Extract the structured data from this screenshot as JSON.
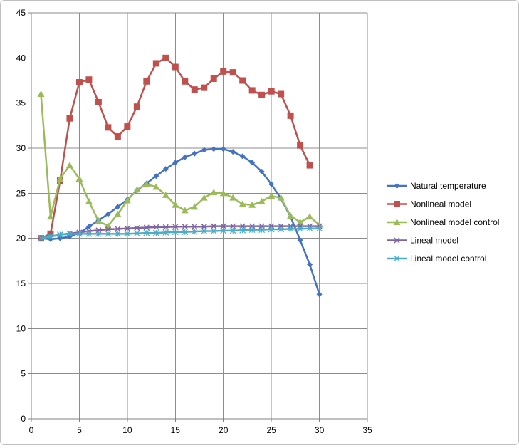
{
  "chart_data": {
    "type": "line",
    "title": "",
    "xlabel": "",
    "ylabel": "",
    "xlim": [
      0,
      35
    ],
    "ylim": [
      0,
      45
    ],
    "xticks": [
      0,
      5,
      10,
      15,
      20,
      25,
      30,
      35
    ],
    "yticks": [
      0,
      5,
      10,
      15,
      20,
      25,
      30,
      35,
      40,
      45
    ],
    "grid": true,
    "legend_position": "right",
    "series": [
      {
        "name": "Natural temperature",
        "color": "#4472C4",
        "marker": "diamond",
        "x": [
          1,
          2,
          3,
          4,
          5,
          6,
          7,
          8,
          9,
          10,
          11,
          12,
          13,
          14,
          15,
          16,
          17,
          18,
          19,
          20,
          21,
          22,
          23,
          24,
          25,
          26,
          27,
          28,
          29,
          30
        ],
        "y": [
          20,
          19.9,
          20,
          20.2,
          20.6,
          21.3,
          22,
          22.7,
          23.5,
          24.3,
          25.3,
          26.1,
          26.9,
          27.7,
          28.4,
          29,
          29.4,
          29.8,
          29.9,
          29.9,
          29.6,
          29.1,
          28.4,
          27.4,
          26,
          24.4,
          22.4,
          19.8,
          17.1,
          13.8
        ]
      },
      {
        "name": "Nonlineal model",
        "color": "#C0504D",
        "marker": "square",
        "x": [
          1,
          2,
          3,
          4,
          5,
          6,
          7,
          8,
          9,
          10,
          11,
          12,
          13,
          14,
          15,
          16,
          17,
          18,
          19,
          20,
          21,
          22,
          23,
          24,
          25,
          26,
          27,
          28,
          29
        ],
        "y": [
          20,
          20.5,
          26.4,
          33.3,
          37.3,
          37.6,
          35.1,
          32.3,
          31.3,
          32.4,
          34.6,
          37.4,
          39.4,
          40,
          39,
          37.4,
          36.5,
          36.7,
          37.7,
          38.5,
          38.4,
          37.5,
          36.4,
          35.9,
          36.3,
          36,
          33.6,
          30.3,
          28.1
        ]
      },
      {
        "name": "Nonlineal model control",
        "color": "#9BBB59",
        "marker": "triangle",
        "x": [
          1,
          2,
          3,
          4,
          5,
          6,
          7,
          8,
          9,
          10,
          11,
          12,
          13,
          14,
          15,
          16,
          17,
          18,
          19,
          20,
          21,
          22,
          23,
          24,
          25,
          26,
          27,
          28,
          29,
          30
        ],
        "y": [
          36,
          22.4,
          26.6,
          28.1,
          26.6,
          24.1,
          21.9,
          21.4,
          22.7,
          24.2,
          25.4,
          26,
          25.7,
          24.8,
          23.7,
          23.1,
          23.5,
          24.5,
          25.1,
          25,
          24.5,
          23.8,
          23.7,
          24.1,
          24.7,
          24.5,
          22.5,
          21.8,
          22.4,
          21.5
        ]
      },
      {
        "name": "Lineal model",
        "color": "#8064A2",
        "marker": "x",
        "x": [
          1,
          2,
          3,
          4,
          5,
          6,
          7,
          8,
          9,
          10,
          11,
          12,
          13,
          14,
          15,
          16,
          17,
          18,
          19,
          20,
          21,
          22,
          23,
          24,
          25,
          26,
          27,
          28,
          29,
          30
        ],
        "y": [
          20,
          20.2,
          20.4,
          20.55,
          20.65,
          20.8,
          20.9,
          21,
          21.05,
          21.1,
          21.15,
          21.2,
          21.25,
          21.25,
          21.3,
          21.3,
          21.3,
          21.3,
          21.35,
          21.35,
          21.35,
          21.35,
          21.35,
          21.35,
          21.35,
          21.35,
          21.35,
          21.35,
          21.35,
          21.35
        ]
      },
      {
        "name": "Lineal model control",
        "color": "#4BACC6",
        "marker": "star",
        "x": [
          1,
          2,
          3,
          4,
          5,
          6,
          7,
          8,
          9,
          10,
          11,
          12,
          13,
          14,
          15,
          16,
          17,
          18,
          19,
          20,
          21,
          22,
          23,
          24,
          25,
          26,
          27,
          28,
          29,
          30
        ],
        "y": [
          20,
          20.2,
          20.4,
          20.5,
          20.5,
          20.5,
          20.5,
          20.5,
          20.5,
          20.5,
          20.55,
          20.6,
          20.6,
          20.65,
          20.7,
          20.7,
          20.75,
          20.8,
          20.8,
          20.85,
          20.85,
          20.9,
          20.95,
          20.95,
          21,
          21,
          21.05,
          21.05,
          21.1,
          21.1
        ]
      }
    ]
  }
}
